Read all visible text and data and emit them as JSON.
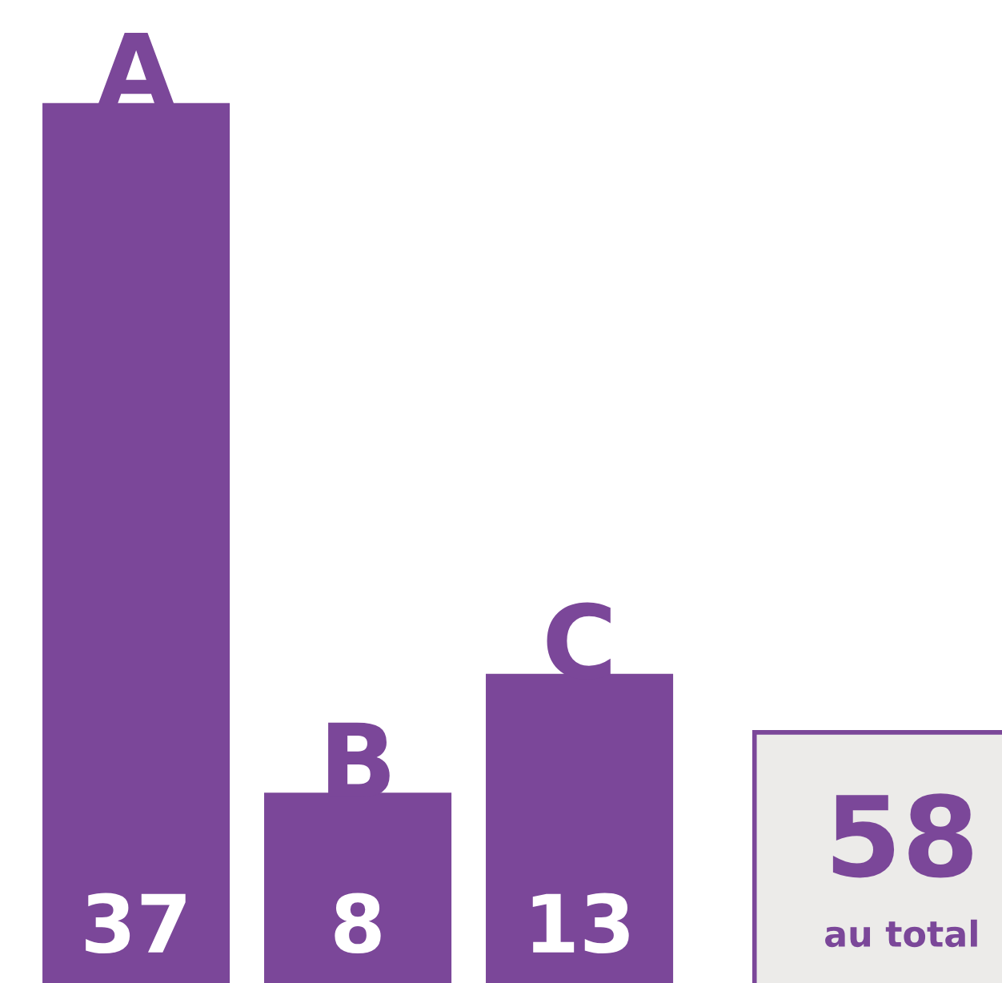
{
  "chart_data": {
    "type": "bar",
    "categories": [
      "A",
      "B",
      "C"
    ],
    "values": [
      37,
      8,
      13
    ],
    "color": "#7b4799",
    "data_labels": true,
    "annotations": [
      "58",
      "au total"
    ]
  }
}
